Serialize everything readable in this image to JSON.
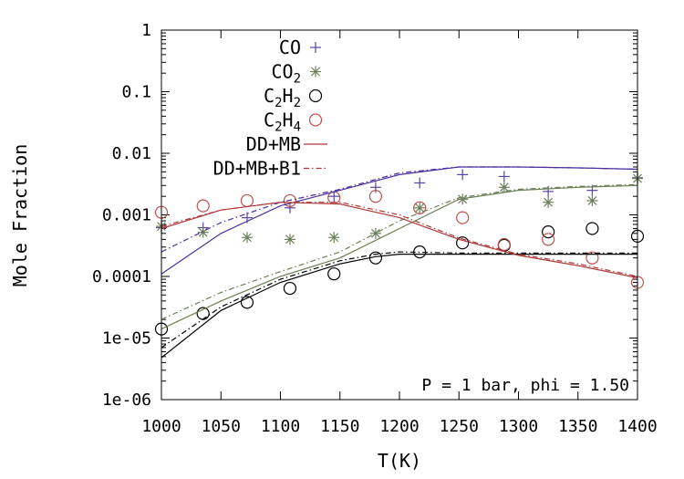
{
  "chart_data": {
    "type": "line",
    "xlabel": "T(K)",
    "ylabel": "Mole Fraction",
    "xlim": [
      1000,
      1400
    ],
    "ylim": [
      1e-06,
      1
    ],
    "yscale": "log",
    "x_ticks": [
      1000,
      1050,
      1100,
      1150,
      1200,
      1250,
      1300,
      1350,
      1400
    ],
    "y_ticks": [
      {
        "value": 1,
        "label": "1"
      },
      {
        "value": 0.1,
        "label": "0.1"
      },
      {
        "value": 0.01,
        "label": "0.01"
      },
      {
        "value": 0.001,
        "label": "0.001"
      },
      {
        "value": 0.0001,
        "label": "0.0001"
      },
      {
        "value": 1e-05,
        "label": "1e-05"
      },
      {
        "value": 1e-06,
        "label": "1e-06"
      }
    ],
    "annotation": "P = 1 bar, phi = 1.50",
    "legend": {
      "placement": "top-right",
      "entries": [
        {
          "label": "CO",
          "sub": "",
          "rest": "",
          "marker": "plus",
          "color": "#5b45a0"
        },
        {
          "label": "CO",
          "sub": "2",
          "rest": "",
          "marker": "star",
          "color": "#6b7f58"
        },
        {
          "label": "C",
          "sub": "2",
          "rest": "H",
          "sub2": "2",
          "marker": "circle",
          "color": "#000000"
        },
        {
          "label": "C",
          "sub": "2",
          "rest": "H",
          "sub2": "4",
          "marker": "circle",
          "color": "#c0504d"
        },
        {
          "label": "DD+MB",
          "line": "solid",
          "color": "#b03a3a"
        },
        {
          "label": "DD+MB+B1",
          "line": "dashdot",
          "color": "#b03a3a"
        }
      ]
    },
    "series": [
      {
        "name": "CO",
        "kind": "points",
        "marker": "plus",
        "color": "#5b45a0",
        "x": [
          1000,
          1035,
          1072,
          1108,
          1145,
          1180,
          1217,
          1253,
          1288,
          1325,
          1362,
          1400
        ],
        "y": [
          0.00062,
          0.00062,
          0.0009,
          0.0013,
          0.002,
          0.0028,
          0.0033,
          0.0045,
          0.0042,
          0.0024,
          0.0025,
          0.004
        ]
      },
      {
        "name": "CO2",
        "kind": "points",
        "marker": "star",
        "color": "#6b7f58",
        "x": [
          1000,
          1035,
          1072,
          1108,
          1145,
          1180,
          1217,
          1253,
          1288,
          1325,
          1362,
          1400
        ],
        "y": [
          0.00065,
          0.00052,
          0.00043,
          0.0004,
          0.00043,
          0.0005,
          0.0013,
          0.0018,
          0.0028,
          0.0016,
          0.0017,
          0.0039
        ]
      },
      {
        "name": "C2H2",
        "kind": "points",
        "marker": "circle",
        "color": "#000000",
        "x": [
          1000,
          1035,
          1072,
          1108,
          1145,
          1180,
          1217,
          1253,
          1288,
          1325,
          1362,
          1400
        ],
        "y": [
          1.4e-05,
          2.5e-05,
          3.8e-05,
          6.4e-05,
          0.00011,
          0.0002,
          0.00025,
          0.00035,
          0.00032,
          0.00053,
          0.0006,
          0.00045
        ]
      },
      {
        "name": "C2H4",
        "kind": "points",
        "marker": "circle",
        "color": "#c0504d",
        "x": [
          1000,
          1035,
          1072,
          1108,
          1145,
          1180,
          1217,
          1253,
          1288,
          1325,
          1362,
          1400
        ],
        "y": [
          0.0011,
          0.0014,
          0.0017,
          0.0017,
          0.0019,
          0.002,
          0.0013,
          0.0009,
          0.00033,
          0.0004,
          0.0002,
          8e-05
        ]
      },
      {
        "name": "CO DD+MB",
        "kind": "line",
        "dash": "solid",
        "color": "#4b2fa0",
        "x": [
          1000,
          1050,
          1100,
          1150,
          1200,
          1250,
          1300,
          1350,
          1400
        ],
        "y": [
          0.00011,
          0.0005,
          0.0014,
          0.0025,
          0.0045,
          0.006,
          0.006,
          0.0058,
          0.0055
        ]
      },
      {
        "name": "CO DD+MB+B1",
        "kind": "line",
        "dash": "dashdot",
        "color": "#4b2fa0",
        "x": [
          1000,
          1050,
          1100,
          1150,
          1200,
          1250,
          1300,
          1350,
          1400
        ],
        "y": [
          0.00025,
          0.00075,
          0.0016,
          0.0026,
          0.0048,
          0.006,
          0.006,
          0.0058,
          0.0055
        ]
      },
      {
        "name": "CO2 DD+MB",
        "kind": "line",
        "dash": "solid",
        "color": "#6b7f58",
        "x": [
          1000,
          1050,
          1100,
          1150,
          1200,
          1250,
          1300,
          1350,
          1400
        ],
        "y": [
          1.4e-05,
          4e-05,
          0.0001,
          0.0002,
          0.0006,
          0.0018,
          0.0025,
          0.0028,
          0.003
        ]
      },
      {
        "name": "CO2 DD+MB+B1",
        "kind": "line",
        "dash": "dashdot",
        "color": "#6b7f58",
        "x": [
          1000,
          1050,
          1100,
          1150,
          1200,
          1250,
          1300,
          1350,
          1400
        ],
        "y": [
          2e-05,
          5.5e-05,
          0.00012,
          0.00025,
          0.0008,
          0.0019,
          0.0026,
          0.0029,
          0.0031
        ]
      },
      {
        "name": "C2H2 DD+MB",
        "kind": "line",
        "dash": "solid",
        "color": "#000000",
        "x": [
          1000,
          1050,
          1100,
          1150,
          1180,
          1200,
          1250,
          1300,
          1350,
          1400
        ],
        "y": [
          4.8e-06,
          2.8e-05,
          8e-05,
          0.00016,
          0.00021,
          0.00023,
          0.00023,
          0.00023,
          0.00023,
          0.00023
        ]
      },
      {
        "name": "C2H2 DD+MB+B1",
        "kind": "line",
        "dash": "dashdot",
        "color": "#000000",
        "x": [
          1000,
          1050,
          1100,
          1150,
          1180,
          1200,
          1250,
          1300,
          1350,
          1400
        ],
        "y": [
          7e-06,
          3.2e-05,
          9e-05,
          0.00018,
          0.00023,
          0.00025,
          0.00024,
          0.00024,
          0.00024,
          0.00024
        ]
      },
      {
        "name": "C2H4 DD+MB",
        "kind": "line",
        "dash": "solid",
        "color": "#b03a3a",
        "x": [
          1000,
          1050,
          1100,
          1150,
          1200,
          1250,
          1300,
          1350,
          1400
        ],
        "y": [
          0.0006,
          0.0012,
          0.0016,
          0.0015,
          0.0009,
          0.0004,
          0.00022,
          0.00015,
          9.5e-05
        ]
      },
      {
        "name": "C2H4 DD+MB+B1",
        "kind": "line",
        "dash": "dashdot",
        "color": "#b03a3a",
        "x": [
          1000,
          1050,
          1100,
          1150,
          1200,
          1250,
          1300,
          1350,
          1400
        ],
        "y": [
          0.00065,
          0.0012,
          0.0016,
          0.0016,
          0.001,
          0.00042,
          0.00023,
          0.00016,
          0.0001
        ]
      }
    ]
  }
}
